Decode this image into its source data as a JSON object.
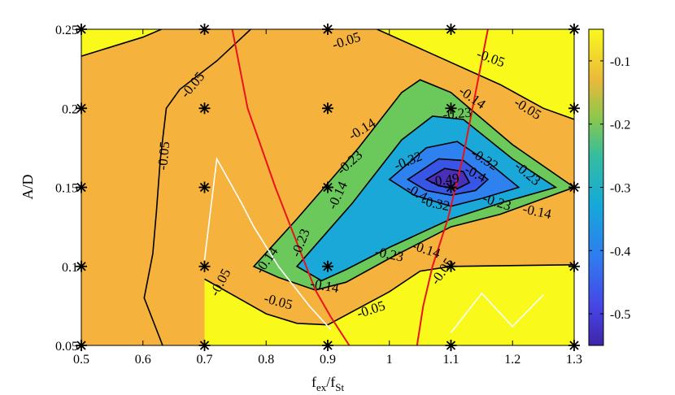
{
  "chart_data": {
    "type": "heatmap",
    "subtype": "filled-contour",
    "title": "",
    "xlabel": {
      "main": "f",
      "sub1": "ex",
      "slash": "/f",
      "sub2": "St"
    },
    "ylabel": "A/D",
    "xlim": [
      0.5,
      1.3
    ],
    "ylim": [
      0.05,
      0.25
    ],
    "x_ticks": [
      "0.5",
      "0.6",
      "0.7",
      "0.8",
      "0.9",
      "1",
      "1.1",
      "1.2",
      "1.3"
    ],
    "y_ticks": [
      "0.05",
      "0.1",
      "0.15",
      "0.2",
      "0.25"
    ],
    "colorbar": {
      "range": [
        -0.55,
        -0.05
      ],
      "ticks": [
        "-0.1",
        "-0.2",
        "-0.3",
        "-0.4",
        "-0.5"
      ],
      "colormap": [
        "#3e26a8",
        "#2f6cf2",
        "#13aed5",
        "#5ec962",
        "#f4b135",
        "#f9f91c"
      ]
    },
    "levels": [
      {
        "value": -0.05,
        "color": "#f5b23c"
      },
      {
        "value": -0.14,
        "color": "#6bc85a"
      },
      {
        "value": -0.23,
        "color": "#1aa8d9"
      },
      {
        "value": -0.32,
        "color": "#2e82f0"
      },
      {
        "value": -0.4,
        "color": "#3756e6"
      },
      {
        "value": -0.49,
        "color": "#4a2fb9"
      }
    ],
    "contours": [
      {
        "value": -0.05,
        "points": [
          [
            0.5,
            0.233
          ],
          [
            0.6,
            0.245
          ],
          [
            0.63,
            0.25
          ]
        ],
        "closed": false,
        "fill": false
      },
      {
        "value": -0.05,
        "points": [
          [
            0.98,
            0.25
          ],
          [
            1.06,
            0.236
          ],
          [
            1.18,
            0.215
          ],
          [
            1.25,
            0.2
          ],
          [
            1.3,
            0.193
          ]
        ],
        "closed": false,
        "fill": false
      },
      {
        "value": -0.05,
        "points": [
          [
            0.775,
            0.25
          ],
          [
            0.72,
            0.23
          ],
          [
            0.66,
            0.212
          ],
          [
            0.638,
            0.2
          ],
          [
            0.628,
            0.167
          ],
          [
            0.622,
            0.135
          ],
          [
            0.616,
            0.108
          ],
          [
            0.602,
            0.08
          ],
          [
            0.632,
            0.05
          ]
        ],
        "closed": false,
        "fill": false
      },
      {
        "value": -0.05,
        "points": [
          [
            0.7,
            0.092
          ],
          [
            0.8,
            0.07
          ],
          [
            0.85,
            0.064
          ],
          [
            0.9,
            0.063
          ],
          [
            1.0,
            0.084
          ],
          [
            1.05,
            0.097
          ],
          [
            1.1,
            0.1
          ],
          [
            1.3,
            0.101
          ]
        ],
        "closed": false,
        "fill": false
      },
      {
        "value": -0.14,
        "points": [
          [
            0.78,
            0.1
          ],
          [
            0.85,
            0.13
          ],
          [
            0.95,
            0.175
          ],
          [
            1.02,
            0.21
          ],
          [
            1.05,
            0.218
          ],
          [
            1.1,
            0.21
          ],
          [
            1.2,
            0.177
          ],
          [
            1.3,
            0.15
          ],
          [
            1.18,
            0.133
          ],
          [
            1.1,
            0.125
          ],
          [
            1.0,
            0.105
          ],
          [
            0.93,
            0.09
          ],
          [
            0.88,
            0.085
          ],
          [
            0.82,
            0.093
          ]
        ],
        "closed": true,
        "fill": true
      },
      {
        "value": -0.23,
        "points": [
          [
            0.85,
            0.1
          ],
          [
            0.94,
            0.14
          ],
          [
            1.02,
            0.18
          ],
          [
            1.07,
            0.195
          ],
          [
            1.12,
            0.193
          ],
          [
            1.2,
            0.168
          ],
          [
            1.27,
            0.15
          ],
          [
            1.18,
            0.14
          ],
          [
            1.1,
            0.13
          ],
          [
            1.0,
            0.112
          ],
          [
            0.93,
            0.098
          ],
          [
            0.89,
            0.091
          ]
        ],
        "closed": true,
        "fill": true
      },
      {
        "value": -0.32,
        "points": [
          [
            1.0,
            0.155
          ],
          [
            1.06,
            0.175
          ],
          [
            1.11,
            0.179
          ],
          [
            1.16,
            0.166
          ],
          [
            1.21,
            0.15
          ],
          [
            1.15,
            0.143
          ],
          [
            1.1,
            0.138
          ],
          [
            1.04,
            0.145
          ]
        ],
        "closed": true,
        "fill": true
      },
      {
        "value": -0.4,
        "points": [
          [
            1.03,
            0.155
          ],
          [
            1.08,
            0.168
          ],
          [
            1.12,
            0.167
          ],
          [
            1.16,
            0.155
          ],
          [
            1.14,
            0.148
          ],
          [
            1.1,
            0.145
          ],
          [
            1.06,
            0.148
          ]
        ],
        "closed": true,
        "fill": true
      },
      {
        "value": -0.49,
        "points": [
          [
            1.06,
            0.155
          ],
          [
            1.09,
            0.162
          ],
          [
            1.12,
            0.16
          ],
          [
            1.13,
            0.153
          ],
          [
            1.11,
            0.149
          ],
          [
            1.08,
            0.151
          ]
        ],
        "closed": true,
        "fill": true
      }
    ],
    "contour_labels": [
      {
        "text": "-0.05",
        "x": 0.93,
        "y": 0.243,
        "angle": -18
      },
      {
        "text": "-0.05",
        "x": 1.165,
        "y": 0.232,
        "angle": 20
      },
      {
        "text": "-0.05",
        "x": 1.225,
        "y": 0.2,
        "angle": 32
      },
      {
        "text": "-0.05",
        "x": 0.68,
        "y": 0.215,
        "angle": -50
      },
      {
        "text": "-0.05",
        "x": 0.633,
        "y": 0.17,
        "angle": -85
      },
      {
        "text": "-0.05",
        "x": 0.725,
        "y": 0.09,
        "angle": -62
      },
      {
        "text": "-0.05",
        "x": 0.82,
        "y": 0.078,
        "angle": 15
      },
      {
        "text": "-0.05",
        "x": 0.97,
        "y": 0.073,
        "angle": -18
      },
      {
        "text": "-0.05",
        "x": 1.085,
        "y": 0.097,
        "angle": -55
      },
      {
        "text": "-0.14",
        "x": 0.955,
        "y": 0.187,
        "angle": -32
      },
      {
        "text": "-0.14",
        "x": 1.135,
        "y": 0.207,
        "angle": 35
      },
      {
        "text": "-0.14",
        "x": 1.24,
        "y": 0.135,
        "angle": 12
      },
      {
        "text": "-0.14",
        "x": 1.06,
        "y": 0.111,
        "angle": 18
      },
      {
        "text": "-0.14",
        "x": 0.895,
        "y": 0.088,
        "angle": 10
      },
      {
        "text": "-0.14",
        "x": 0.915,
        "y": 0.145,
        "angle": -65
      },
      {
        "text": "-0.14",
        "x": 0.8,
        "y": 0.104,
        "angle": -55
      },
      {
        "text": "-0.23",
        "x": 1.11,
        "y": 0.197,
        "angle": -5
      },
      {
        "text": "-0.23",
        "x": 0.935,
        "y": 0.166,
        "angle": -42
      },
      {
        "text": "-0.23",
        "x": 0.855,
        "y": 0.115,
        "angle": -68
      },
      {
        "text": "-0.23",
        "x": 1.0,
        "y": 0.108,
        "angle": 12
      },
      {
        "text": "-0.23",
        "x": 1.225,
        "y": 0.159,
        "angle": 40
      },
      {
        "text": "-0.23",
        "x": 1.175,
        "y": 0.141,
        "angle": 18
      },
      {
        "text": "-0.32",
        "x": 1.03,
        "y": 0.167,
        "angle": -22
      },
      {
        "text": "-0.32",
        "x": 1.155,
        "y": 0.168,
        "angle": 32
      },
      {
        "text": "-0.32",
        "x": 1.075,
        "y": 0.14,
        "angle": 12
      },
      {
        "text": "-0.4",
        "x": 1.14,
        "y": 0.159,
        "angle": 28
      },
      {
        "text": "-0.4",
        "x": 1.045,
        "y": 0.147,
        "angle": 30
      },
      {
        "text": "-0.49",
        "x": 1.09,
        "y": 0.155,
        "angle": -8
      }
    ],
    "red_lines": [
      [
        [
          0.745,
          0.25
        ],
        [
          0.77,
          0.2
        ],
        [
          0.815,
          0.15
        ],
        [
          0.84,
          0.125
        ],
        [
          0.88,
          0.085
        ],
        [
          0.905,
          0.068
        ],
        [
          0.935,
          0.05
        ]
      ],
      [
        [
          1.045,
          0.05
        ],
        [
          1.055,
          0.075
        ],
        [
          1.07,
          0.1
        ],
        [
          1.095,
          0.13
        ],
        [
          1.12,
          0.17
        ],
        [
          1.14,
          0.21
        ],
        [
          1.16,
          0.25
        ]
      ]
    ],
    "white_lines": [
      [
        [
          0.7,
          0.104
        ],
        [
          0.72,
          0.168
        ],
        [
          0.76,
          0.14
        ],
        [
          0.78,
          0.125
        ],
        [
          0.82,
          0.1
        ],
        [
          0.87,
          0.075
        ],
        [
          0.905,
          0.06
        ]
      ],
      [
        [
          1.1,
          0.058
        ],
        [
          1.15,
          0.083
        ],
        [
          1.2,
          0.062
        ],
        [
          1.25,
          0.082
        ]
      ]
    ],
    "markers": [
      [
        0.5,
        0.05
      ],
      [
        0.7,
        0.05
      ],
      [
        0.9,
        0.05
      ],
      [
        1.1,
        0.05
      ],
      [
        1.3,
        0.05
      ],
      [
        0.5,
        0.1
      ],
      [
        0.7,
        0.1
      ],
      [
        0.9,
        0.1
      ],
      [
        1.1,
        0.1
      ],
      [
        1.3,
        0.1
      ],
      [
        0.5,
        0.15
      ],
      [
        0.7,
        0.15
      ],
      [
        0.9,
        0.15
      ],
      [
        1.1,
        0.15
      ],
      [
        1.3,
        0.15
      ],
      [
        0.5,
        0.2
      ],
      [
        0.7,
        0.2
      ],
      [
        0.9,
        0.2
      ],
      [
        1.1,
        0.2
      ],
      [
        1.3,
        0.2
      ],
      [
        0.5,
        0.25
      ],
      [
        0.7,
        0.25
      ],
      [
        0.9,
        0.25
      ],
      [
        1.1,
        0.25
      ],
      [
        1.3,
        0.25
      ]
    ],
    "background_color": "#f9f91c",
    "outer_fill_color": "#f5b23c"
  }
}
